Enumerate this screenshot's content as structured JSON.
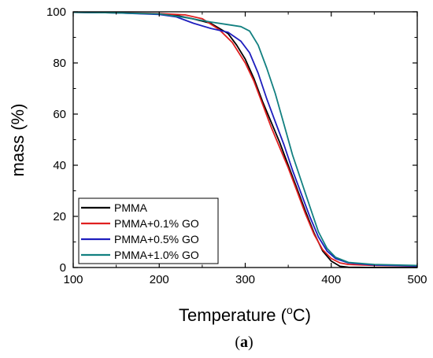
{
  "chart_data": {
    "type": "line",
    "xlabel_main": "Temperature (",
    "xlabel_sup": "o",
    "xlabel_end": "C)",
    "ylabel": "mass (%)",
    "xlim": [
      100,
      500
    ],
    "ylim": [
      0,
      100
    ],
    "xticks": [
      100,
      200,
      300,
      400,
      500
    ],
    "yticks": [
      0,
      20,
      40,
      60,
      80,
      100
    ],
    "xtick_labels": [
      "100",
      "200",
      "300",
      "400",
      "500"
    ],
    "ytick_labels": [
      "0",
      "20",
      "40",
      "60",
      "80",
      "100"
    ],
    "legend_position": "bottom-left",
    "grid": false,
    "caption_open": "(",
    "caption_letter": "a",
    "caption_close": ")",
    "series": [
      {
        "name": "PMMA",
        "color": "#000000",
        "points": [
          [
            100,
            99.8
          ],
          [
            150,
            99.6
          ],
          [
            200,
            99.1
          ],
          [
            220,
            98.6
          ],
          [
            240,
            97.2
          ],
          [
            260,
            95.5
          ],
          [
            280,
            91.5
          ],
          [
            290,
            87.0
          ],
          [
            300,
            81.5
          ],
          [
            310,
            74.0
          ],
          [
            320,
            65.0
          ],
          [
            330,
            57.0
          ],
          [
            340,
            49.0
          ],
          [
            350,
            40.0
          ],
          [
            360,
            31.0
          ],
          [
            370,
            22.0
          ],
          [
            380,
            13.5
          ],
          [
            390,
            6.5
          ],
          [
            400,
            2.5
          ],
          [
            410,
            0.5
          ],
          [
            420,
            0.1
          ],
          [
            450,
            0.0
          ],
          [
            500,
            0.0
          ]
        ]
      },
      {
        "name": "PMMA+0.1% GO",
        "color": "#e01f1f",
        "points": [
          [
            100,
            99.8
          ],
          [
            150,
            99.7
          ],
          [
            200,
            99.3
          ],
          [
            230,
            98.8
          ],
          [
            250,
            97.3
          ],
          [
            270,
            93.0
          ],
          [
            285,
            88.0
          ],
          [
            300,
            80.0
          ],
          [
            310,
            73.0
          ],
          [
            320,
            64.0
          ],
          [
            330,
            55.0
          ],
          [
            340,
            47.0
          ],
          [
            350,
            39.0
          ],
          [
            360,
            30.0
          ],
          [
            370,
            21.0
          ],
          [
            380,
            13.0
          ],
          [
            390,
            7.0
          ],
          [
            400,
            3.5
          ],
          [
            410,
            1.8
          ],
          [
            420,
            1.2
          ],
          [
            450,
            0.8
          ],
          [
            500,
            0.6
          ]
        ]
      },
      {
        "name": "PMMA+0.5% GO",
        "color": "#1e1ebe",
        "points": [
          [
            100,
            99.8
          ],
          [
            150,
            99.6
          ],
          [
            200,
            99.0
          ],
          [
            220,
            98.0
          ],
          [
            240,
            95.5
          ],
          [
            260,
            93.5
          ],
          [
            280,
            92.0
          ],
          [
            295,
            88.5
          ],
          [
            305,
            84.0
          ],
          [
            315,
            76.0
          ],
          [
            325,
            66.0
          ],
          [
            335,
            57.0
          ],
          [
            345,
            48.0
          ],
          [
            355,
            38.0
          ],
          [
            365,
            29.0
          ],
          [
            375,
            20.0
          ],
          [
            385,
            12.0
          ],
          [
            395,
            6.5
          ],
          [
            405,
            3.5
          ],
          [
            420,
            1.8
          ],
          [
            450,
            1.0
          ],
          [
            500,
            0.6
          ]
        ]
      },
      {
        "name": "PMMA+1.0% GO",
        "color": "#128080",
        "points": [
          [
            100,
            99.8
          ],
          [
            150,
            99.6
          ],
          [
            200,
            99.2
          ],
          [
            230,
            97.8
          ],
          [
            260,
            96.0
          ],
          [
            280,
            95.0
          ],
          [
            295,
            94.2
          ],
          [
            305,
            92.5
          ],
          [
            315,
            87.0
          ],
          [
            325,
            78.0
          ],
          [
            335,
            68.0
          ],
          [
            345,
            56.0
          ],
          [
            355,
            44.0
          ],
          [
            365,
            34.0
          ],
          [
            375,
            24.0
          ],
          [
            385,
            14.0
          ],
          [
            395,
            7.5
          ],
          [
            405,
            4.0
          ],
          [
            420,
            2.0
          ],
          [
            450,
            1.2
          ],
          [
            500,
            0.8
          ]
        ]
      }
    ]
  }
}
